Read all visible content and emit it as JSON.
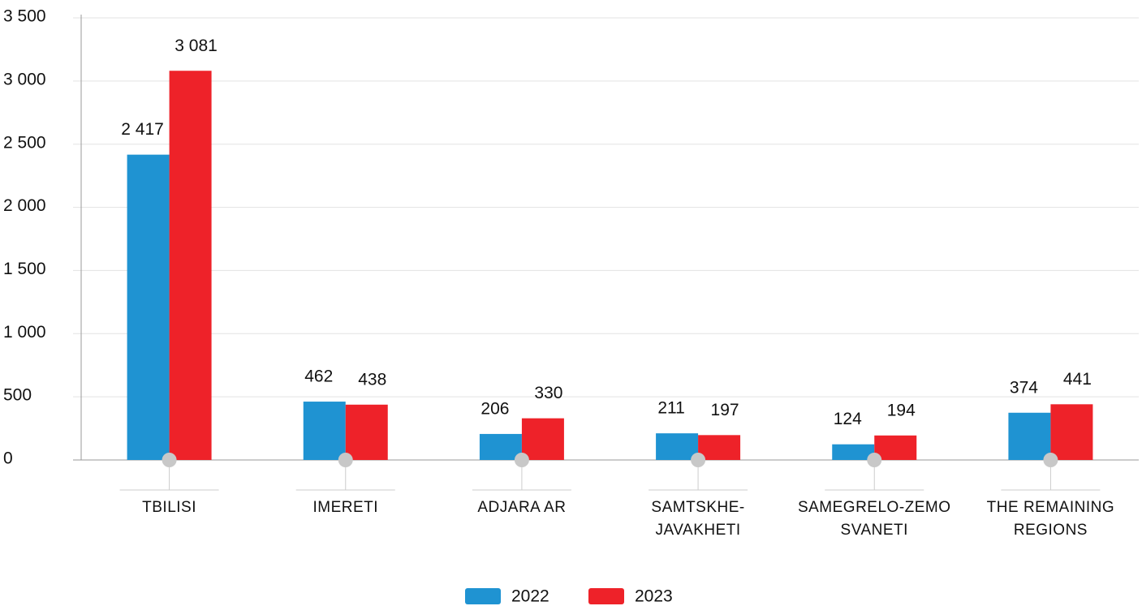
{
  "chart_data": {
    "type": "bar",
    "categories": [
      "TBILISI",
      "IMERETI",
      "ADJARA AR",
      "SAMTSKHE-JAVAKHETI",
      "SAMEGRELO-ZEMO SVANETI",
      "THE REMAINING REGIONS"
    ],
    "series": [
      {
        "name": "2022",
        "color": "#1f93d2",
        "values": [
          2417,
          462,
          206,
          211,
          124,
          374
        ],
        "value_labels": [
          "2 417",
          "462",
          "206",
          "211",
          "124",
          "374"
        ]
      },
      {
        "name": "2023",
        "color": "#ee2229",
        "values": [
          3081,
          438,
          330,
          197,
          194,
          441
        ],
        "value_labels": [
          "3 081",
          "438",
          "330",
          "197",
          "194",
          "441"
        ]
      }
    ],
    "ylim": [
      0,
      3500
    ],
    "yticks": [
      0,
      500,
      {
        "value": 1000,
        "label": "1 000"
      },
      {
        "value": 1500,
        "label": "1 500"
      },
      {
        "value": 2000,
        "label": "2 000"
      },
      {
        "value": 2500,
        "label": "2 500"
      },
      {
        "value": 3000,
        "label": "3 000"
      },
      {
        "value": 3500,
        "label": "3 500"
      }
    ],
    "grid": true,
    "legend": "bottom"
  }
}
